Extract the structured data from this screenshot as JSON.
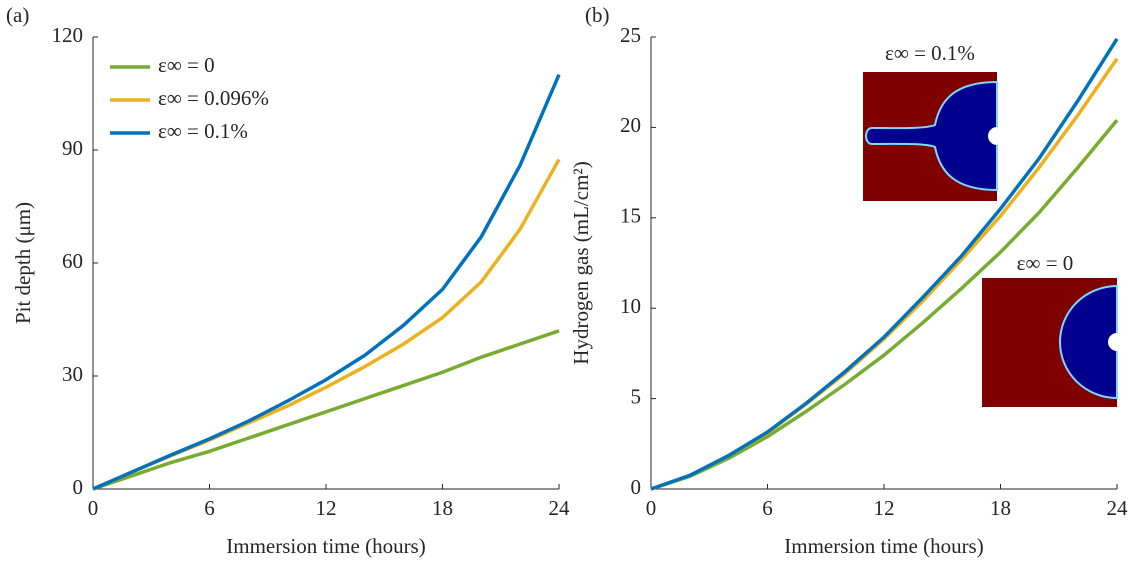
{
  "chart_data": [
    {
      "type": "line",
      "panel_label": "(a)",
      "x_label": "Immersion time (hours)",
      "y_label": "Pit depth (μm)",
      "x": [
        0,
        2,
        4,
        6,
        8,
        10,
        12,
        14,
        16,
        18,
        20,
        22,
        24
      ],
      "xlim": [
        0,
        24
      ],
      "xticks": [
        0,
        6,
        12,
        18,
        24
      ],
      "ylim": [
        0,
        120
      ],
      "yticks": [
        0,
        30,
        60,
        90,
        120
      ],
      "legend": "northwest",
      "series": [
        {
          "name": "ε∞ = 0",
          "color": "#77ac30",
          "values": [
            0,
            3.5,
            7,
            10,
            13.5,
            17,
            20.5,
            24,
            27.5,
            31,
            35,
            38.5,
            42
          ]
        },
        {
          "name": "ε∞ = 0.096%",
          "color": "#edb120",
          "values": [
            0,
            4.5,
            8.8,
            13,
            17.5,
            22,
            27,
            32.5,
            38.5,
            45.5,
            55,
            69,
            87.5
          ]
        },
        {
          "name": "ε∞ = 0.1%",
          "color": "#0072bd",
          "values": [
            0,
            4.5,
            9,
            13.3,
            18,
            23.3,
            29,
            35.5,
            43.5,
            53,
            67,
            86,
            110
          ]
        }
      ]
    },
    {
      "type": "line",
      "panel_label": "(b)",
      "x_label": "Immersion time (hours)",
      "y_label": "Hydrogen gas (mL/cm²)",
      "x": [
        0,
        2,
        4,
        6,
        8,
        10,
        12,
        14,
        16,
        18,
        20,
        22,
        24
      ],
      "xlim": [
        0,
        24
      ],
      "xticks": [
        0,
        6,
        12,
        18,
        24
      ],
      "ylim": [
        0,
        25
      ],
      "yticks": [
        0,
        5,
        10,
        15,
        20,
        25
      ],
      "annotations": [
        "ε∞ = 0.1%",
        "ε∞ = 0"
      ],
      "series": [
        {
          "color": "#77ac30",
          "values": [
            0,
            0.7,
            1.7,
            2.9,
            4.3,
            5.8,
            7.4,
            9.2,
            11.1,
            13.1,
            15.3,
            17.8,
            20.4
          ]
        },
        {
          "color": "#edb120",
          "values": [
            0,
            0.75,
            1.85,
            3.1,
            4.7,
            6.4,
            8.3,
            10.4,
            12.7,
            15.1,
            17.8,
            20.7,
            23.8
          ]
        },
        {
          "color": "#0072bd",
          "values": [
            0,
            0.75,
            1.85,
            3.15,
            4.75,
            6.5,
            8.4,
            10.6,
            12.9,
            15.5,
            18.3,
            21.5,
            24.9
          ]
        }
      ]
    }
  ]
}
